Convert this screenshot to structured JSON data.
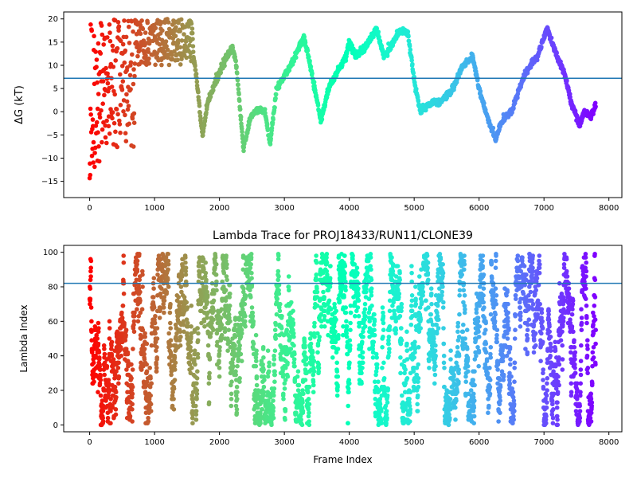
{
  "chart_data": [
    {
      "type": "scatter",
      "title": "",
      "xlabel": "",
      "ylabel": "ΔG (kT)",
      "xlim": [
        -400,
        8200
      ],
      "ylim": [
        -18.5,
        21.5
      ],
      "xticks": [
        0,
        1000,
        2000,
        3000,
        4000,
        5000,
        6000,
        7000,
        8000
      ],
      "yticks": [
        -15,
        -10,
        -5,
        0,
        5,
        10,
        15,
        20
      ],
      "hline": 7.2,
      "hline_color": "#1f77b4",
      "colormap": "rainbow (reversed: red at frame 0 → violet at last frame)",
      "n_frames": 7800,
      "marker_size": 2.8,
      "trend_keypoints": [
        [
          1580,
          18
        ],
        [
          1600,
          12
        ],
        [
          1640,
          8
        ],
        [
          1700,
          0
        ],
        [
          1740,
          -5
        ],
        [
          1820,
          2
        ],
        [
          1950,
          7
        ],
        [
          2120,
          12
        ],
        [
          2200,
          14
        ],
        [
          2260,
          10
        ],
        [
          2370,
          -8
        ],
        [
          2480,
          -1
        ],
        [
          2600,
          0.5
        ],
        [
          2700,
          0
        ],
        [
          2780,
          -7
        ],
        [
          2880,
          5
        ],
        [
          3100,
          10
        ],
        [
          3300,
          16
        ],
        [
          3400,
          10
        ],
        [
          3560,
          -2
        ],
        [
          3680,
          5
        ],
        [
          3950,
          12
        ],
        [
          4000,
          15
        ],
        [
          4100,
          12
        ],
        [
          4250,
          14
        ],
        [
          4420,
          18
        ],
        [
          4530,
          12
        ],
        [
          4640,
          14
        ],
        [
          4780,
          17.5
        ],
        [
          4900,
          17
        ],
        [
          5020,
          5
        ],
        [
          5100,
          0
        ],
        [
          5250,
          2
        ],
        [
          5400,
          2
        ],
        [
          5600,
          5
        ],
        [
          5750,
          10
        ],
        [
          5900,
          12
        ],
        [
          6000,
          5
        ],
        [
          6100,
          0
        ],
        [
          6250,
          -6
        ],
        [
          6350,
          -2
        ],
        [
          6500,
          0
        ],
        [
          6700,
          8
        ],
        [
          6900,
          12
        ],
        [
          7050,
          18
        ],
        [
          7200,
          12
        ],
        [
          7320,
          8
        ],
        [
          7420,
          2
        ],
        [
          7550,
          -3
        ],
        [
          7620,
          0
        ],
        [
          7720,
          -1
        ],
        [
          7800,
          1.5
        ]
      ]
    },
    {
      "type": "scatter",
      "title": "Lambda Trace for PROJ18433/RUN11/CLONE39",
      "xlabel": "Frame Index",
      "ylabel": "Lambda Index",
      "xlim": [
        -400,
        8200
      ],
      "ylim": [
        -4,
        104
      ],
      "xticks": [
        0,
        1000,
        2000,
        3000,
        4000,
        5000,
        6000,
        7000,
        8000
      ],
      "yticks": [
        0,
        20,
        40,
        60,
        80,
        100
      ],
      "hline": 82,
      "hline_color": "#1f77b4",
      "colormap": "rainbow (reversed: red at frame 0 → violet at last frame)",
      "n_frames": 7800,
      "marker_size": 2.8,
      "lambda_range": [
        0,
        99
      ]
    }
  ]
}
